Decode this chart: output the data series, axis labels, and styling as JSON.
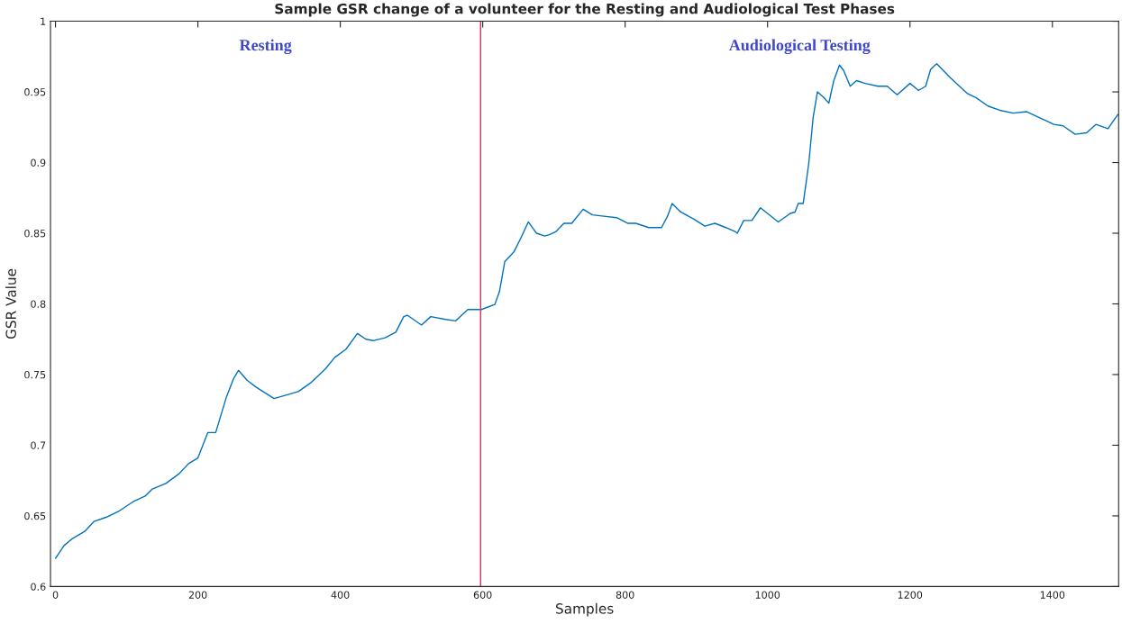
{
  "chart_data": {
    "type": "line",
    "title": "Sample GSR change of a volunteer for the Resting and Audiological Test Phases",
    "xlabel": "Samples",
    "ylabel": "GSR Value",
    "x": [
      0,
      12,
      24,
      41,
      54,
      71,
      88,
      109,
      126,
      136,
      155,
      174,
      187,
      200,
      214,
      225,
      240,
      250,
      257,
      269,
      282,
      307,
      341,
      358,
      379,
      392,
      408,
      424,
      436,
      446,
      463,
      478,
      489,
      494,
      514,
      527,
      548,
      562,
      579,
      598,
      617,
      623.5,
      631,
      644,
      653,
      664,
      675.5,
      687,
      693.5,
      702.5,
      714,
      725,
      741,
      754,
      770,
      788,
      804,
      815,
      833,
      851,
      859.5,
      866,
      878,
      896.5,
      912,
      926,
      941.5,
      955,
      957.5,
      966.5,
      978,
      990,
      1015,
      1032,
      1038.6,
      1043,
      1050,
      1054.5,
      1058,
      1064,
      1070,
      1079,
      1086,
      1093,
      1101,
      1107,
      1116,
      1125,
      1137,
      1155,
      1168,
      1182,
      1200,
      1212,
      1222,
      1229,
      1237.5,
      1256.5,
      1280,
      1292.5,
      1309.5,
      1326,
      1345,
      1364,
      1381,
      1402,
      1415,
      1432,
      1448,
      1461,
      1478,
      1492
    ],
    "series": [
      {
        "color": "#0072bd",
        "values": [
          0.62,
          0.629,
          0.634,
          0.639,
          0.646,
          0.649,
          0.653,
          0.66,
          0.664,
          0.669,
          0.673,
          0.68,
          0.687,
          0.691,
          0.709,
          0.709,
          0.734,
          0.747,
          0.753,
          0.746,
          0.741,
          0.733,
          0.738,
          0.744,
          0.754,
          0.762,
          0.768,
          0.779,
          0.775,
          0.774,
          0.776,
          0.78,
          0.791,
          0.792,
          0.785,
          0.791,
          0.789,
          0.788,
          0.796,
          0.796,
          0.7996,
          0.8087,
          0.83,
          0.837,
          0.846,
          0.858,
          0.85,
          0.848,
          0.849,
          0.851,
          0.857,
          0.857,
          0.867,
          0.863,
          0.862,
          0.861,
          0.857,
          0.857,
          0.854,
          0.854,
          0.862,
          0.871,
          0.865,
          0.86,
          0.855,
          0.857,
          0.854,
          0.851,
          0.85,
          0.859,
          0.859,
          0.868,
          0.858,
          0.864,
          0.865,
          0.871,
          0.871,
          0.887,
          0.9,
          0.932,
          0.95,
          0.946,
          0.942,
          0.958,
          0.969,
          0.965,
          0.954,
          0.958,
          0.956,
          0.954,
          0.954,
          0.948,
          0.956,
          0.951,
          0.954,
          0.966,
          0.97,
          0.96,
          0.949,
          0.946,
          0.94,
          0.937,
          0.935,
          0.936,
          0.932,
          0.927,
          0.926,
          0.92,
          0.921,
          0.927,
          0.924,
          0.934
        ]
      }
    ],
    "xlim": [
      -7,
      1493
    ],
    "ylim": [
      0.6,
      1
    ],
    "xticks": [
      0,
      200,
      400,
      600,
      800,
      1000,
      1200,
      1400
    ],
    "yticks": [
      0.6,
      0.65,
      0.7,
      0.75,
      0.8,
      0.85,
      0.9,
      0.95,
      1
    ],
    "grid": false,
    "legend": false,
    "marker": "none",
    "line_style": "solid",
    "ref_lines": [
      {
        "axis": "x",
        "value": 597,
        "color": "#d6305c"
      }
    ],
    "annotations": [
      "Resting",
      "Audiological Testing"
    ]
  }
}
